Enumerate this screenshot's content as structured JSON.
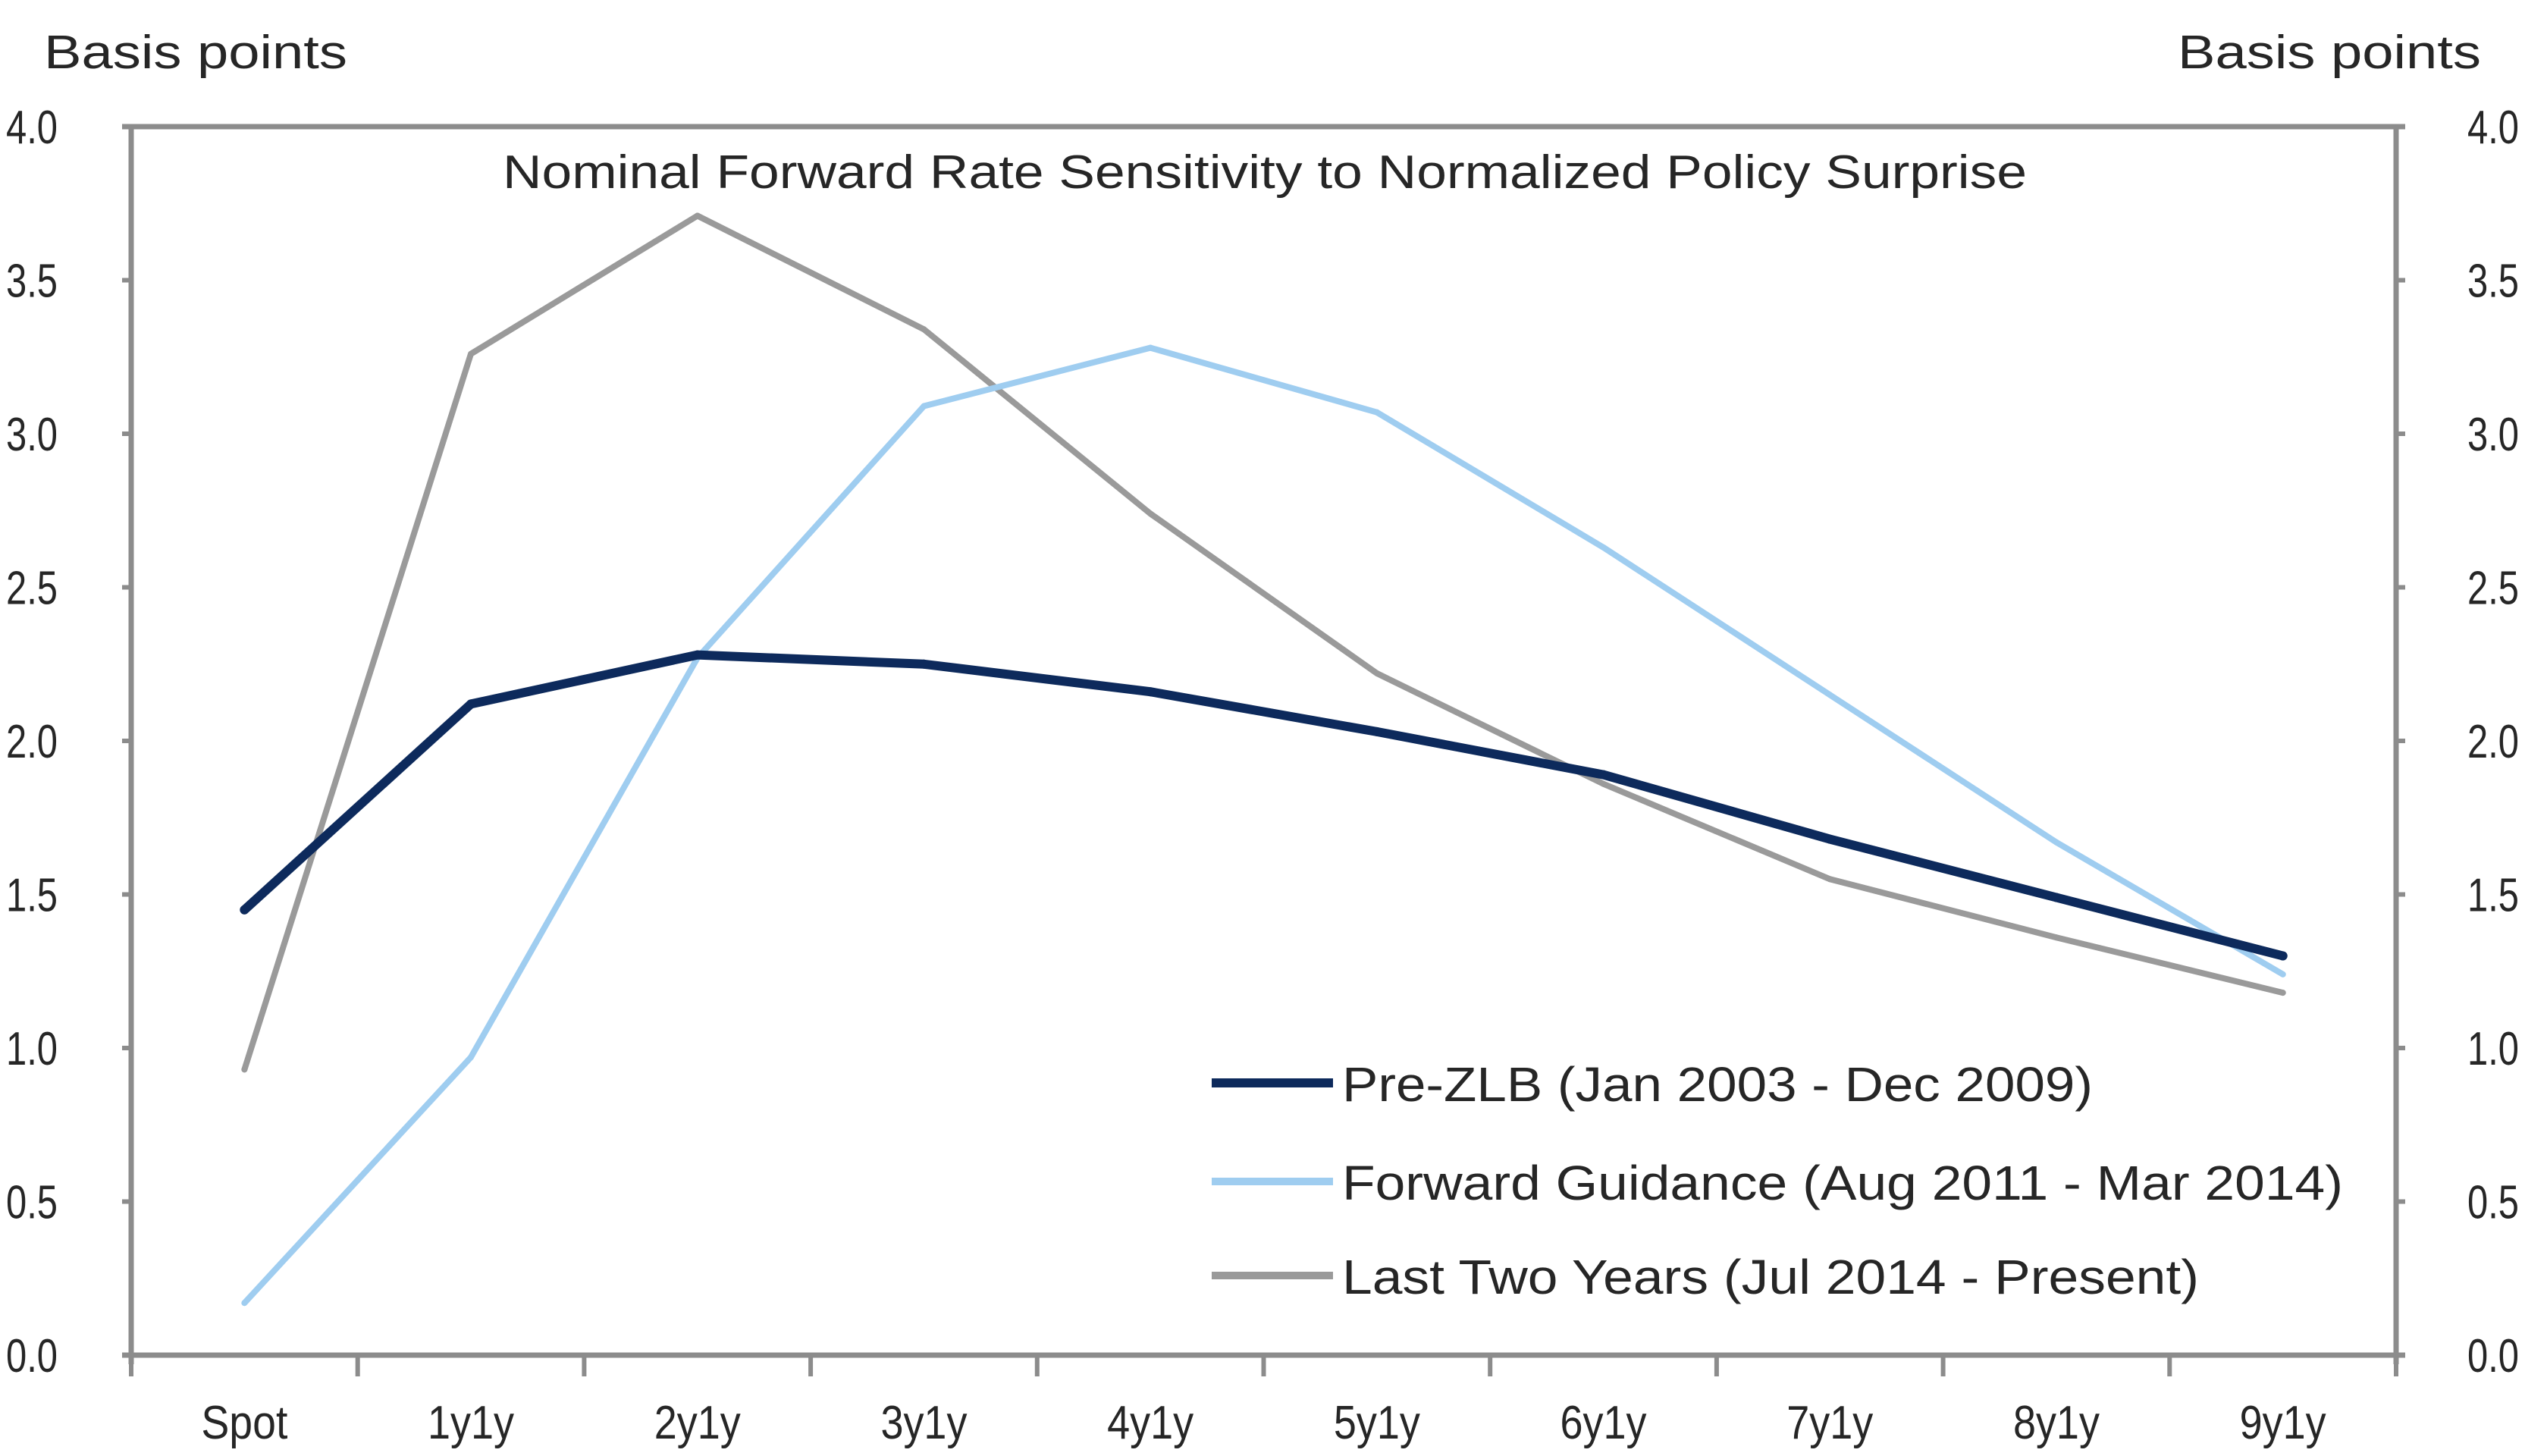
{
  "chart_data": {
    "type": "line",
    "title": "Nominal Forward Rate Sensitivity to Normalized Policy Surprise",
    "ylabel_left": "Basis points",
    "ylabel_right": "Basis points",
    "xlabel": "",
    "categories": [
      "Spot",
      "1y1y",
      "2y1y",
      "3y1y",
      "4y1y",
      "5y1y",
      "6y1y",
      "7y1y",
      "8y1y",
      "9y1y"
    ],
    "ylim": [
      0,
      4
    ],
    "yticks": [
      "0.0",
      "0.5",
      "1.0",
      "1.5",
      "2.0",
      "2.5",
      "3.0",
      "3.5",
      "4.0"
    ],
    "ytick_values": [
      0,
      0.5,
      1,
      1.5,
      2,
      2.5,
      3,
      3.5,
      4
    ],
    "grid": false,
    "legend_position": "bottom-right",
    "series": [
      {
        "name": "Pre-ZLB (Jan 2003 - Dec 2009)",
        "color": "#0d2a5c",
        "values": [
          1.45,
          2.12,
          2.28,
          2.25,
          2.16,
          2.03,
          1.89,
          1.68,
          1.49,
          1.3
        ]
      },
      {
        "name": "Forward Guidance (Aug 2011 - Mar 2014)",
        "color": "#9fcdf0",
        "values": [
          0.17,
          0.97,
          2.27,
          3.09,
          3.28,
          3.07,
          2.63,
          2.15,
          1.67,
          1.24
        ]
      },
      {
        "name": "Last Two Years (Jul 2014 - Present)",
        "color": "#9a9a9a",
        "values": [
          0.93,
          3.26,
          3.71,
          3.34,
          2.74,
          2.22,
          1.86,
          1.55,
          1.36,
          1.18
        ]
      }
    ],
    "axis_color": "#8c8c8c"
  }
}
